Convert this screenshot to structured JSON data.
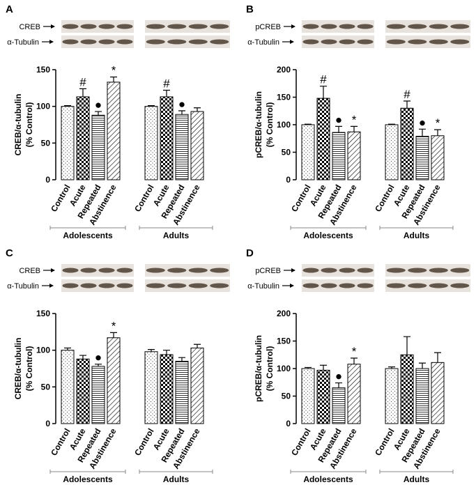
{
  "chart_data": [
    {
      "type": "bar",
      "panel": "A",
      "blot_labels": [
        "CREB",
        "α-Tubulin"
      ],
      "ylabel": [
        "CREB/α-tubulin",
        "(% Control)"
      ],
      "categories": [
        "Control",
        "Acute",
        "Repeated",
        "Abstinence",
        "Control",
        "Acute",
        "Repeated",
        "Abstinence"
      ],
      "groups": [
        "Adolescents",
        "Adults"
      ],
      "values": [
        100,
        113,
        88,
        133,
        100,
        113,
        89,
        93
      ],
      "errors": [
        1,
        11,
        5,
        7,
        1,
        9,
        5,
        5
      ],
      "markers": [
        null,
        "#",
        "●",
        "*",
        null,
        "#",
        "●",
        null
      ],
      "ylim": [
        0,
        150
      ],
      "yticks": [
        0,
        50,
        100,
        150
      ]
    },
    {
      "type": "bar",
      "panel": "B",
      "blot_labels": [
        "pCREB",
        "α-Tubulin"
      ],
      "ylabel": [
        "pCREB/α-tubulin",
        "(% Control)"
      ],
      "categories": [
        "Control",
        "Acute",
        "Repeated",
        "Abstinence",
        "Control",
        "Acute",
        "Repeated",
        "Abstinence"
      ],
      "groups": [
        "Adolescents",
        "Adults"
      ],
      "values": [
        100,
        148,
        86,
        87,
        100,
        130,
        79,
        80
      ],
      "errors": [
        1,
        22,
        11,
        10,
        1,
        13,
        13,
        11
      ],
      "markers": [
        null,
        "#",
        "●",
        "*",
        null,
        "#",
        "●",
        "*"
      ],
      "ylim": [
        0,
        200
      ],
      "yticks": [
        0,
        50,
        100,
        150,
        200
      ]
    },
    {
      "type": "bar",
      "panel": "C",
      "blot_labels": [
        "CREB",
        "α-Tubulin"
      ],
      "ylabel": [
        "CREB/α-tubulin",
        "(% Control)"
      ],
      "categories": [
        "Control",
        "Acute",
        "Repeated",
        "Abstinence",
        "Control",
        "Acute",
        "Repeated",
        "Abstinence"
      ],
      "groups": [
        "Adolescents",
        "Adults"
      ],
      "values": [
        100,
        88,
        78,
        117,
        98,
        94,
        85,
        103
      ],
      "errors": [
        3,
        5,
        3,
        7,
        3,
        6,
        5,
        5
      ],
      "markers": [
        null,
        null,
        "●",
        "*",
        null,
        null,
        null,
        null
      ],
      "ylim": [
        0,
        150
      ],
      "yticks": [
        0,
        50,
        100,
        150
      ]
    },
    {
      "type": "bar",
      "panel": "D",
      "blot_labels": [
        "pCREB",
        "α-Tubulin"
      ],
      "ylabel": [
        "pCREB/α-tubulin",
        "(% Control)"
      ],
      "categories": [
        "Control",
        "Acute",
        "Repeated",
        "Abstinence",
        "Control",
        "Acute",
        "Repeated",
        "Abstinence"
      ],
      "groups": [
        "Adolescents",
        "Adults"
      ],
      "values": [
        100,
        97,
        65,
        108,
        100,
        125,
        100,
        111
      ],
      "errors": [
        2,
        9,
        9,
        11,
        3,
        33,
        10,
        18
      ],
      "markers": [
        null,
        null,
        "●",
        "*",
        null,
        null,
        null,
        null
      ],
      "ylim": [
        0,
        200
      ],
      "yticks": [
        0,
        50,
        100,
        150,
        200
      ]
    }
  ]
}
